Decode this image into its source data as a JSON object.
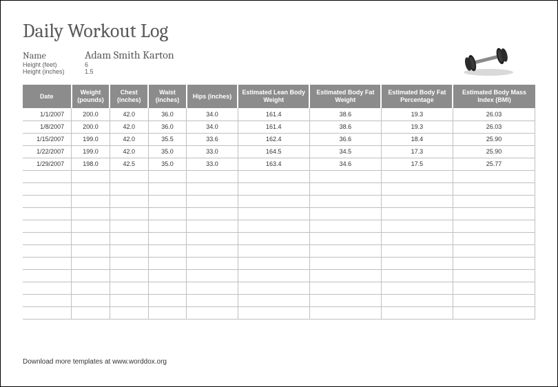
{
  "title": "Daily Workout Log",
  "info": {
    "name_label": "Name",
    "name_value": "Adam Smith Karton",
    "height_ft_label": "Height (feet)",
    "height_ft_value": "6",
    "height_in_label": "Height (inches)",
    "height_in_value": "1.5"
  },
  "icon": {
    "plate_color": "#2b2b2b",
    "bar_color": "#8a8a8a",
    "shadow_color": "#d9d9d9"
  },
  "table": {
    "header_bg": "#8c8c8c",
    "header_fg": "#ffffff",
    "grid_color": "#bfbfbf",
    "columns": [
      "Date",
      "Weight (pounds)",
      "Chest (inches)",
      "Waist (inches)",
      "Hips (inches)",
      "Estimated Lean Body Weight",
      "Estimated Body Fat Weight",
      "Estimated Body Fat Percentage",
      "Estimated Body Mass Index (BMI)"
    ],
    "rows": [
      [
        "1/1/2007",
        "200.0",
        "42.0",
        "36.0",
        "34.0",
        "161.4",
        "38.6",
        "19.3",
        "26.03"
      ],
      [
        "1/8/2007",
        "200.0",
        "42.0",
        "36.0",
        "34.0",
        "161.4",
        "38.6",
        "19.3",
        "26.03"
      ],
      [
        "1/15/2007",
        "199.0",
        "42.0",
        "35.5",
        "33.6",
        "162.4",
        "36.6",
        "18.4",
        "25.90"
      ],
      [
        "1/22/2007",
        "199.0",
        "42.0",
        "35.0",
        "33.0",
        "164.5",
        "34.5",
        "17.3",
        "25.90"
      ],
      [
        "1/29/2007",
        "198.0",
        "42.5",
        "35.0",
        "33.0",
        "163.4",
        "34.6",
        "17.5",
        "25.77"
      ]
    ],
    "empty_rows": 12
  },
  "footer": "Download more templates at www.worddox.org"
}
